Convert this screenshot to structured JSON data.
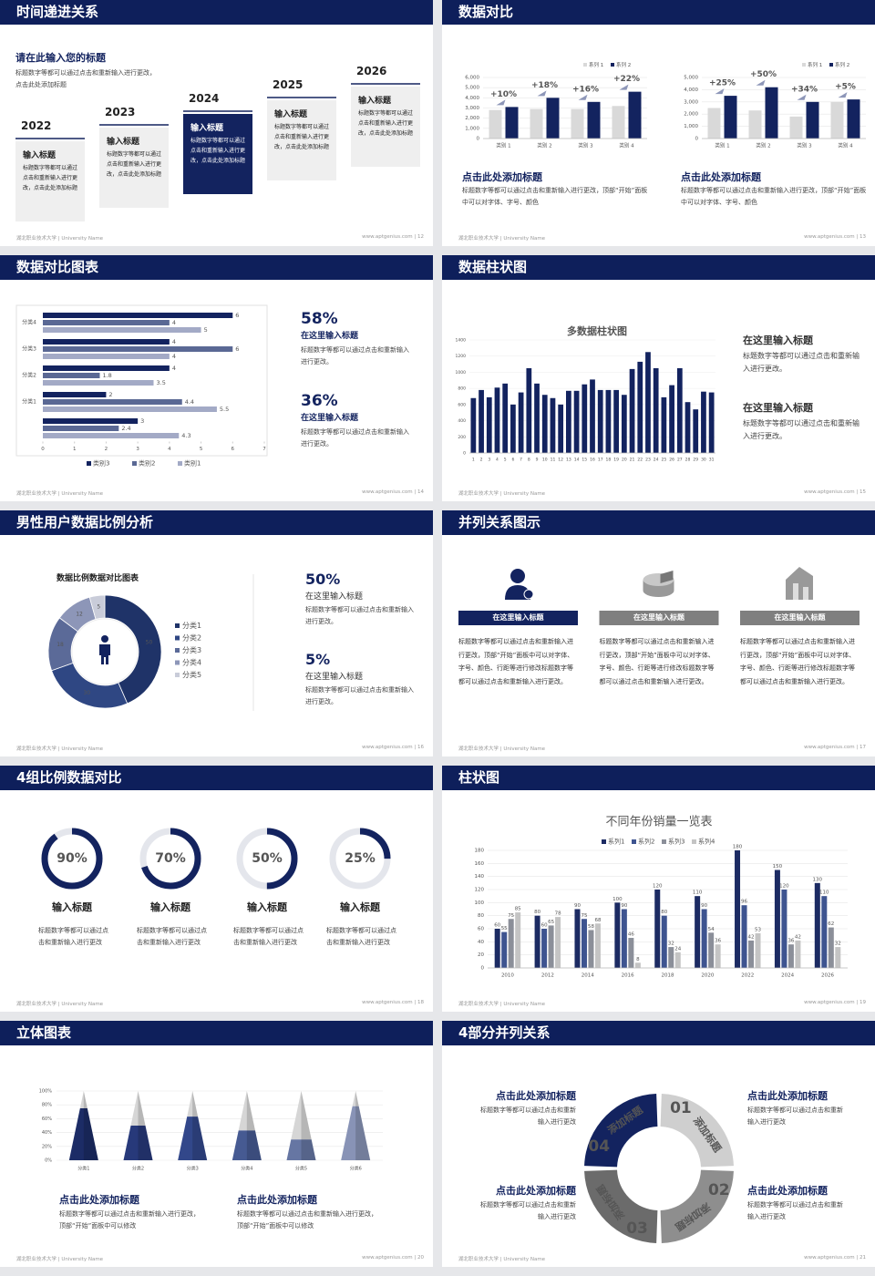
{
  "slides": [
    {
      "title": "时间递进关系",
      "type": "timeline",
      "heading": "请在此输入您的标题",
      "text": "标题数字等都可以通过点击和重新输入进行更改，点击此处添加标题",
      "items": [
        {
          "year": "2022",
          "title": "输入标题",
          "text": "标题数字等都可以通过点击和重新输入进行更改，点击此处添加标题",
          "color": "#efefef",
          "text_color": "#222222"
        },
        {
          "year": "2023",
          "title": "输入标题",
          "text": "标题数字等都可以通过点击和重新输入进行更改，点击此处添加标题",
          "color": "#efefef",
          "text_color": "#222222"
        },
        {
          "year": "2024",
          "title": "输入标题",
          "text": "标题数字等都可以通过点击和重新输入进行更改，点击此处添加标题",
          "color": "#13235f",
          "text_color": "#ffffff"
        },
        {
          "year": "2025",
          "title": "输入标题",
          "text": "标题数字等都可以通过点击和重新输入进行更改，点击此处添加标题",
          "color": "#efefef",
          "text_color": "#222222"
        },
        {
          "year": "2026",
          "title": "输入标题",
          "text": "标题数字等都可以通过点击和重新输入进行更改，点击此处添加标题",
          "color": "#efefef",
          "text_color": "#222222"
        }
      ],
      "footer_left": "湖北职业技术大学 | University Name",
      "footer_right": "www.aptgenius.com | 12"
    },
    {
      "title": "数据对比",
      "type": "dual_bar",
      "chart_data": [
        {
          "type": "bar",
          "categories": [
            "类别 1",
            "类别 2",
            "类别 3",
            "类别 4"
          ],
          "series": [
            {
              "name": "系列 1",
              "color": "#d9d9d9",
              "values": [
                2800,
                2900,
                2900,
                3200
              ]
            },
            {
              "name": "系列 2",
              "color": "#13235f",
              "values": [
                3100,
                4000,
                3600,
                4600
              ]
            }
          ],
          "annotations": [
            "+10%",
            "+18%",
            "+16%",
            "+22%"
          ],
          "ylim": [
            0,
            6000
          ],
          "yticks": [
            0,
            {
              "value": 1000,
              "label": "1,000"
            },
            {
              "value": 2000,
              "label": "2,000"
            },
            {
              "value": 3000,
              "label": "3,000"
            },
            {
              "value": 4000,
              "label": "4,000"
            },
            {
              "value": 5000,
              "label": "5,000"
            },
            {
              "value": 6000,
              "label": "6,000"
            }
          ]
        },
        {
          "type": "bar",
          "categories": [
            "类别 1",
            "类别 2",
            "类别 3",
            "类别 4"
          ],
          "series": [
            {
              "name": "系列 1",
              "color": "#d9d9d9",
              "values": [
                2500,
                2300,
                1800,
                3000
              ]
            },
            {
              "name": "系列 2",
              "color": "#13235f",
              "values": [
                3500,
                4200,
                3000,
                3200
              ]
            }
          ],
          "annotations": [
            "+25%",
            "+50%",
            "+34%",
            "+5%"
          ],
          "ylim": [
            0,
            5000
          ],
          "yticks": [
            0,
            {
              "value": 1000,
              "label": "1,000"
            },
            {
              "value": 2000,
              "label": "2,000"
            },
            {
              "value": 3000,
              "label": "3,000"
            },
            {
              "value": 4000,
              "label": "4,000"
            },
            {
              "value": 5000,
              "label": "5,000"
            }
          ]
        }
      ],
      "blocks": [
        {
          "title": "点击此处添加标题",
          "text": "标题数字等都可以通过点击和重新输入进行更改，顶部“开始”面板中可以对字体、字号、颜色"
        },
        {
          "title": "点击此处添加标题",
          "text": "标题数字等都可以通过点击和重新输入进行更改，顶部“开始”面板中可以对字体、字号、颜色"
        }
      ],
      "footer_left": "湖北职业技术大学 | University Name",
      "footer_right": "www.aptgenius.com | 13"
    },
    {
      "title": "数据对比图表",
      "type": "hbar",
      "chart_data": {
        "type": "hbar",
        "categories": [
          "分类4",
          "分类3",
          "分类2",
          "分类1",
          null
        ],
        "series": [
          {
            "name": "类别3",
            "color": "#13235f",
            "values": [
              6,
              4,
              4,
              2,
              3
            ]
          },
          {
            "name": "类别2",
            "color": "#5a6894",
            "values": [
              4,
              6,
              1.8,
              4.4,
              2.4
            ]
          },
          {
            "name": "类别1",
            "color": "#a3aac6",
            "values": [
              5,
              4,
              3.5,
              5.5,
              4.3
            ]
          }
        ],
        "xlim": [
          0,
          7
        ],
        "xticks": [
          0,
          1,
          2,
          3,
          4,
          5,
          6,
          7
        ]
      },
      "stats": [
        {
          "value": "58%",
          "title": "在这里输入标题",
          "text": "标题数字等都可以通过点击和重新输入进行更改。"
        },
        {
          "value": "36%",
          "title": "在这里输入标题",
          "text": "标题数字等都可以通过点击和重新输入进行更改。"
        }
      ],
      "footer_left": "湖北职业技术大学 | University Name",
      "footer_right": "www.aptgenius.com | 14"
    },
    {
      "title": "数据柱状图",
      "type": "column",
      "chart_data": {
        "type": "bar",
        "title": "多数据柱状图",
        "categories": [
          "1",
          "2",
          "3",
          "4",
          "5",
          "6",
          "7",
          "8",
          "9",
          "10",
          "11",
          "12",
          "13",
          "14",
          "15",
          "16",
          "17",
          "18",
          "19",
          "20",
          "21",
          "22",
          "23",
          "24",
          "25",
          "26",
          "27",
          "28",
          "29",
          "30",
          "31"
        ],
        "values": [
          680,
          780,
          690,
          810,
          860,
          600,
          750,
          1050,
          860,
          720,
          680,
          600,
          770,
          770,
          850,
          910,
          780,
          780,
          780,
          720,
          1040,
          1130,
          1250,
          1050,
          690,
          840,
          1050,
          630,
          540,
          760,
          750
        ],
        "color": "#13235f",
        "ylim": [
          0,
          1400
        ],
        "yticks": [
          0,
          200,
          400,
          600,
          800,
          1000,
          1200,
          1400
        ]
      },
      "blocks": [
        {
          "title": "在这里输入标题",
          "text": "标题数字等都可以通过点击和重新输入进行更改。"
        },
        {
          "title": "在这里输入标题",
          "text": "标题数字等都可以通过点击和重新输入进行更改。"
        }
      ],
      "footer_left": "湖北职业技术大学 | University Name",
      "footer_right": "www.aptgenius.com | 15"
    },
    {
      "title": "男性用户数据比例分析",
      "type": "donut",
      "chart_data": {
        "type": "donut",
        "title": "数据比例数据对比图表",
        "categories": [
          "分类1",
          "分类2",
          "分类3",
          "分类4",
          "分类5"
        ],
        "values": [
          50,
          30,
          18,
          12,
          5
        ],
        "colors": [
          "#1f3368",
          "#2f4783",
          "#5b6a98",
          "#8d96b8",
          "#c9ccd9"
        ]
      },
      "stats": [
        {
          "value": "50%",
          "title": "在这里输入标题",
          "text": "标题数字等都可以通过点击和重新输入进行更改。"
        },
        {
          "value": "5%",
          "title": "在这里输入标题",
          "text": "标题数字等都可以通过点击和重新输入进行更改。"
        }
      ],
      "footer_left": "湖北职业技术大学 | University Name",
      "footer_right": "www.aptgenius.com | 16"
    },
    {
      "title": "并列关系图示",
      "type": "parallel",
      "items": [
        {
          "title": "在这里输入标题",
          "text": "标题数字等都可以通过点击和重新输入进行更改，顶部“开始”面板中可以对字体、字号、颜色、行距等进行修改标题数字等都可以通过点击和重新输入进行更改。",
          "color": "#13235f"
        },
        {
          "title": "在这里输入标题",
          "text": "标题数字等都可以通过点击和重新输入进行更改，顶部“开始”面板中可以对字体、字号、颜色、行距等进行修改标题数字等都可以通过点击和重新输入进行更改。",
          "color": "#7f7f7f"
        },
        {
          "title": "在这里输入标题",
          "text": "标题数字等都可以通过点击和重新输入进行更改，顶部“开始”面板中可以对字体、字号、颜色、行距等进行修改标题数字等都可以通过点击和重新输入进行更改。",
          "color": "#7f7f7f"
        }
      ],
      "footer_left": "湖北职业技术大学 | University Name",
      "footer_right": "www.aptgenius.com | 17"
    },
    {
      "title": "4组比例数据对比",
      "type": "progress",
      "chart_data": {
        "type": "progress",
        "values": [
          90,
          70,
          50,
          25
        ],
        "value_labels": [
          "90%",
          "70%",
          "50%",
          "25%"
        ],
        "ylim": [
          0,
          100
        ],
        "color": "#13235f",
        "track_color": "#e4e6ec"
      },
      "items": [
        {
          "title": "输入标题",
          "text": "标题数字等都可以通过点击和重新输入进行更改"
        },
        {
          "title": "输入标题",
          "text": "标题数字等都可以通过点击和重新输入进行更改"
        },
        {
          "title": "输入标题",
          "text": "标题数字等都可以通过点击和重新输入进行更改"
        },
        {
          "title": "输入标题",
          "text": "标题数字等都可以通过点击和重新输入进行更改"
        }
      ],
      "footer_left": "湖北职业技术大学 | University Name",
      "footer_right": "www.aptgenius.com | 18"
    },
    {
      "title": "柱状图",
      "type": "group_bar",
      "chart_data": {
        "type": "bar",
        "title": "不同年份销量一览表",
        "categories": [
          "2010",
          "2012",
          "2014",
          "2016",
          "2018",
          "2020",
          "2022",
          "2024",
          "2026"
        ],
        "series": [
          {
            "name": "系列1",
            "color": "#1c2b63",
            "values": [
              60,
              80,
              90,
              100,
              120,
              110,
              180,
              150,
              130
            ]
          },
          {
            "name": "系列2",
            "color": "#3e5490",
            "values": [
              55,
              60,
              75,
              90,
              80,
              90,
              96,
              120,
              110
            ]
          },
          {
            "name": "系列3",
            "color": "#8b8f99",
            "values": [
              75,
              65,
              58,
              46,
              32,
              54,
              42,
              36,
              62
            ]
          },
          {
            "name": "系列4",
            "color": "#c4c4c4",
            "values": [
              85,
              78,
              68,
              8,
              24,
              36,
              53,
              42,
              32
            ]
          }
        ],
        "ylim": [
          0,
          180
        ],
        "yticks": [
          0,
          20,
          40,
          60,
          80,
          100,
          120,
          140,
          160,
          180
        ]
      },
      "footer_left": "湖北职业技术大学 | University Name",
      "footer_right": "www.aptgenius.com | 19"
    },
    {
      "title": "立体图表",
      "type": "pyramid",
      "chart_data": {
        "type": "pyramid",
        "categories": [
          "分类1",
          "分类2",
          "分类3",
          "分类4",
          "分类5",
          "分类6"
        ],
        "values": [
          75,
          50,
          63,
          43,
          30,
          78
        ],
        "colors": [
          "#1c2c66",
          "#27397a",
          "#32478a",
          "#465a92",
          "#6676a3",
          "#8893b6"
        ],
        "ylim": [
          0,
          100
        ],
        "yticks": [
          {
            "value": 0,
            "label": "0%"
          },
          {
            "value": 20,
            "label": "20%"
          },
          {
            "value": 40,
            "label": "40%"
          },
          {
            "value": 60,
            "label": "60%"
          },
          {
            "value": 80,
            "label": "80%"
          },
          {
            "value": 100,
            "label": "100%"
          }
        ]
      },
      "blocks": [
        {
          "title": "点击此处添加标题",
          "text": "标题数字等都可以通过点击和重新输入进行更改，顶部“开始”面板中可以修改"
        },
        {
          "title": "点击此处添加标题",
          "text": "标题数字等都可以通过点击和重新输入进行更改，顶部“开始”面板中可以修改"
        }
      ],
      "footer_left": "湖北职业技术大学 | University Name",
      "footer_right": "www.aptgenius.com | 20"
    },
    {
      "title": "4部分并列关系",
      "type": "cycle",
      "segments": [
        {
          "number": "01",
          "label": "添加标题",
          "color": "#cfcfcf"
        },
        {
          "number": "02",
          "label": "添加标题",
          "color": "#8e8e8e"
        },
        {
          "number": "03",
          "label": "添加标题",
          "color": "#6b6b6b"
        },
        {
          "number": "04",
          "label": "添加标题",
          "color": "#13235f"
        }
      ],
      "blocks": [
        {
          "title": "点击此处添加标题",
          "text": "标题数字等都可以通过点击和重新输入进行更改"
        },
        {
          "title": "点击此处添加标题",
          "text": "标题数字等都可以通过点击和重新输入进行更改"
        },
        {
          "title": "点击此处添加标题",
          "text": "标题数字等都可以通过点击和重新输入进行更改"
        },
        {
          "title": "点击此处添加标题",
          "text": "标题数字等都可以通过点击和重新输入进行更改"
        }
      ],
      "footer_left": "湖北职业技术大学 | University Name",
      "footer_right": "www.aptgenius.com | 21"
    }
  ]
}
